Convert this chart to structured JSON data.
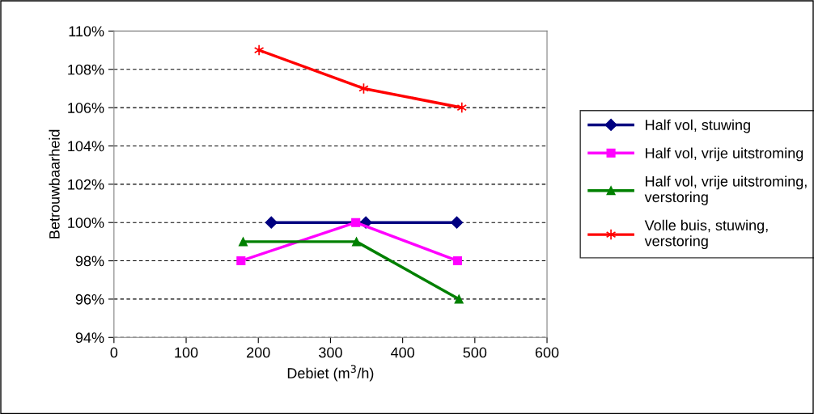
{
  "chart_data": {
    "type": "line",
    "xlabel": "Debiet (m$^{3}$/h)",
    "ylabel": "Betrouwbaarheid",
    "xlim": [
      0,
      600
    ],
    "xticks": [
      0,
      100,
      200,
      300,
      400,
      500,
      600
    ],
    "ylim": [
      94,
      110
    ],
    "yticks": [
      {
        "value": 94,
        "label": "94%"
      },
      {
        "value": 96,
        "label": "96%"
      },
      {
        "value": 98,
        "label": "98%"
      },
      {
        "value": 100,
        "label": "100%"
      },
      {
        "value": 102,
        "label": "102%"
      },
      {
        "value": 104,
        "label": "104%"
      },
      {
        "value": 106,
        "label": "106%"
      },
      {
        "value": 108,
        "label": "108%"
      },
      {
        "value": 110,
        "label": "110%"
      }
    ],
    "grid": "y",
    "legend": "right",
    "line_style": "solid",
    "series": [
      {
        "name": "Half vol, stuwing",
        "color": "#000080",
        "marker": "diamond",
        "x": [
          218,
          349,
          475
        ],
        "values": [
          100,
          100,
          100
        ]
      },
      {
        "name": "Half vol, vrije uitstroming",
        "color": "#ff00ff",
        "marker": "square",
        "x": [
          176,
          335,
          476
        ],
        "values": [
          98,
          100,
          98
        ]
      },
      {
        "name": "Half vol, vrije uitstroming,\nverstoring",
        "color": "#008000",
        "marker": "triangle",
        "x": [
          179,
          336,
          478
        ],
        "values": [
          99,
          99,
          96
        ]
      },
      {
        "name": "Volle buis, stuwing,\nverstoring",
        "color": "#ff0000",
        "marker": "cross",
        "x": [
          201,
          346,
          482
        ],
        "values": [
          109,
          107,
          106
        ]
      }
    ]
  }
}
